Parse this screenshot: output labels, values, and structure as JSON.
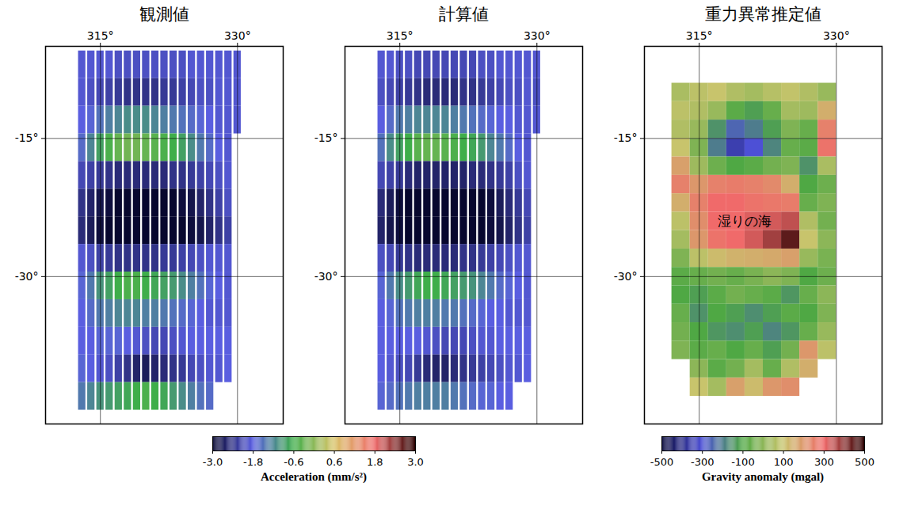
{
  "chart_data": [
    {
      "type": "strips",
      "title": "観測値",
      "x": [
        313,
        314,
        315,
        316,
        317,
        318,
        319,
        320,
        321,
        322,
        323,
        324,
        325,
        326,
        327,
        328,
        329,
        330
      ],
      "y": [
        -7,
        -10,
        -13,
        -16,
        -19,
        -22,
        -25,
        -28,
        -31,
        -34,
        -37,
        -40,
        -43
      ],
      "values": [
        [
          -1.9,
          -1.9,
          -1.9,
          -1.9,
          -2.0,
          -2.0,
          -2.0,
          -2.0,
          -2.0,
          -2.0,
          -2.0,
          -2.0,
          -1.9,
          -1.9,
          -1.9,
          -1.9,
          -1.9,
          -1.9
        ],
        [
          -1.9,
          -2.0,
          -2.1,
          -2.2,
          -2.3,
          -2.4,
          -2.4,
          -2.4,
          -2.4,
          -2.3,
          -2.3,
          -2.2,
          -2.1,
          -2.0,
          -2.0,
          -1.9,
          -1.9,
          -1.9
        ],
        [
          -1.8,
          -1.7,
          -1.5,
          -1.3,
          -1.2,
          -1.1,
          -1.1,
          -1.1,
          -1.2,
          -1.3,
          -1.4,
          -1.5,
          -1.6,
          -1.7,
          -1.8,
          -1.9,
          -1.9,
          -1.9
        ],
        [
          -1.6,
          -1.2,
          -0.8,
          -0.5,
          -0.3,
          -0.2,
          -0.2,
          -0.3,
          -0.4,
          -0.5,
          -0.6,
          -0.8,
          -1.1,
          -1.4,
          -1.6,
          -1.8,
          -1.9,
          null
        ],
        [
          -2.1,
          -2.2,
          -2.3,
          -2.4,
          -2.5,
          -2.5,
          -2.5,
          -2.5,
          -2.5,
          -2.5,
          -2.4,
          -2.4,
          -2.3,
          -2.2,
          -2.1,
          -2.0,
          -1.9,
          null
        ],
        [
          -2.4,
          -2.6,
          -2.8,
          -2.9,
          -3.0,
          -3.0,
          -3.0,
          -3.0,
          -3.0,
          -3.0,
          -3.0,
          -2.9,
          -2.8,
          -2.6,
          -2.4,
          -2.2,
          -2.0,
          null
        ],
        [
          -2.5,
          -2.7,
          -2.9,
          -3.0,
          -3.0,
          -3.0,
          -3.0,
          -3.0,
          -3.0,
          -3.0,
          -3.0,
          -3.0,
          -2.9,
          -2.8,
          -2.6,
          -2.4,
          -2.2,
          null
        ],
        [
          -1.9,
          -2.0,
          -2.2,
          -2.3,
          -2.4,
          -2.4,
          -2.4,
          -2.4,
          -2.4,
          -2.3,
          -2.3,
          -2.2,
          -2.1,
          -2.0,
          -1.9,
          -1.9,
          -1.9,
          null
        ],
        [
          -1.7,
          -1.4,
          -1.0,
          -0.8,
          -0.6,
          -0.5,
          -0.5,
          -0.6,
          -0.7,
          -0.8,
          -0.9,
          -1.1,
          -1.3,
          -1.5,
          -1.7,
          -1.8,
          -1.9,
          null
        ],
        [
          -1.8,
          -1.6,
          -1.4,
          -1.3,
          -1.2,
          -1.2,
          -1.2,
          -1.3,
          -1.3,
          -1.4,
          -1.5,
          -1.6,
          -1.7,
          -1.8,
          -1.9,
          -1.9,
          -1.9,
          null
        ],
        [
          -1.8,
          -1.8,
          -1.7,
          -1.7,
          -1.7,
          -1.8,
          -1.9,
          -2.0,
          -2.1,
          -2.1,
          -2.0,
          -1.9,
          -1.8,
          -1.8,
          -1.8,
          -1.8,
          -1.8,
          null
        ],
        [
          -1.7,
          -1.8,
          -1.9,
          -2.0,
          -2.2,
          -2.4,
          -2.6,
          -2.7,
          -2.6,
          -2.5,
          -2.4,
          -2.3,
          -2.1,
          -2.0,
          -1.9,
          -1.9,
          -1.8,
          null
        ],
        [
          -1.4,
          -1.2,
          -1.0,
          -0.9,
          -0.8,
          -0.7,
          -0.6,
          -0.5,
          -0.6,
          -0.7,
          -0.9,
          -1.1,
          -1.3,
          -1.5,
          -1.6,
          null,
          null,
          null
        ]
      ],
      "xlim": [
        309,
        335
      ],
      "ylim": [
        -46,
        -5
      ],
      "xticks": [
        {
          "value": 315,
          "label": "315°"
        },
        {
          "value": 330,
          "label": "330°"
        }
      ],
      "yticks": [
        {
          "value": -15,
          "label": "-15°"
        },
        {
          "value": -30,
          "label": "-30°"
        }
      ],
      "grid": true,
      "colorbar": {
        "label": "Acceleration (mm/s²)",
        "range": [
          -3,
          3
        ],
        "ticks": [
          {
            "value": -3,
            "label": "-3.0"
          },
          -1.8,
          -0.6,
          0.6,
          1.8,
          {
            "value": 3,
            "label": "3.0"
          }
        ],
        "colors": [
          "#07072e",
          "#5a5ee0",
          "#3fae4a",
          "#d9c46a",
          "#ef6d6d",
          "#2a0000"
        ]
      }
    },
    {
      "type": "strips",
      "title": "計算値",
      "x": [
        313,
        314,
        315,
        316,
        317,
        318,
        319,
        320,
        321,
        322,
        323,
        324,
        325,
        326,
        327,
        328,
        329,
        330
      ],
      "y": [
        -7,
        -10,
        -13,
        -16,
        -19,
        -22,
        -25,
        -28,
        -31,
        -34,
        -37,
        -40,
        -43
      ],
      "values": [
        [
          -1.9,
          -1.9,
          -2.0,
          -2.0,
          -2.1,
          -2.1,
          -2.1,
          -2.1,
          -2.1,
          -2.1,
          -2.1,
          -2.0,
          -2.0,
          -1.9,
          -1.9,
          -1.9,
          -1.9,
          -1.9
        ],
        [
          -2.0,
          -2.1,
          -2.2,
          -2.3,
          -2.4,
          -2.5,
          -2.5,
          -2.5,
          -2.5,
          -2.4,
          -2.4,
          -2.3,
          -2.2,
          -2.1,
          -2.0,
          -2.0,
          -1.9,
          -2.0
        ],
        [
          -1.8,
          -1.6,
          -1.4,
          -1.3,
          -1.2,
          -1.2,
          -1.2,
          -1.2,
          -1.3,
          -1.4,
          -1.5,
          -1.6,
          -1.7,
          -1.8,
          -1.8,
          -1.9,
          -1.9,
          -1.9
        ],
        [
          -1.5,
          -1.1,
          -0.8,
          -0.6,
          -0.4,
          -0.3,
          -0.3,
          -0.4,
          -0.5,
          -0.6,
          -0.7,
          -0.9,
          -1.2,
          -1.4,
          -1.6,
          -1.8,
          -1.9,
          null
        ],
        [
          -2.1,
          -2.2,
          -2.3,
          -2.5,
          -2.6,
          -2.6,
          -2.6,
          -2.6,
          -2.6,
          -2.6,
          -2.5,
          -2.5,
          -2.4,
          -2.3,
          -2.2,
          -2.0,
          -1.9,
          null
        ],
        [
          -2.5,
          -2.7,
          -2.9,
          -3.0,
          -3.0,
          -3.0,
          -3.0,
          -3.0,
          -3.0,
          -3.0,
          -3.0,
          -3.0,
          -2.9,
          -2.7,
          -2.5,
          -2.3,
          -2.1,
          null
        ],
        [
          -2.6,
          -2.8,
          -2.9,
          -3.0,
          -3.0,
          -3.0,
          -3.0,
          -3.0,
          -3.0,
          -3.0,
          -3.0,
          -3.0,
          -2.9,
          -2.8,
          -2.6,
          -2.4,
          -2.2,
          null
        ],
        [
          -2.0,
          -2.1,
          -2.3,
          -2.4,
          -2.5,
          -2.5,
          -2.5,
          -2.5,
          -2.5,
          -2.4,
          -2.4,
          -2.3,
          -2.2,
          -2.1,
          -2.0,
          -1.9,
          -1.9,
          null
        ],
        [
          -1.7,
          -1.4,
          -1.1,
          -0.9,
          -0.7,
          -0.6,
          -0.6,
          -0.7,
          -0.8,
          -0.9,
          -1.0,
          -1.2,
          -1.4,
          -1.6,
          -1.7,
          -1.8,
          -1.9,
          null
        ],
        [
          -1.8,
          -1.7,
          -1.5,
          -1.4,
          -1.3,
          -1.3,
          -1.3,
          -1.4,
          -1.4,
          -1.5,
          -1.6,
          -1.7,
          -1.8,
          -1.8,
          -1.9,
          -1.9,
          -1.9,
          null
        ],
        [
          -1.8,
          -1.8,
          -1.8,
          -1.8,
          -1.8,
          -1.9,
          -2.0,
          -2.1,
          -2.1,
          -2.1,
          -2.0,
          -1.9,
          -1.9,
          -1.8,
          -1.8,
          -1.8,
          -1.8,
          null
        ],
        [
          -1.8,
          -1.9,
          -2.0,
          -2.1,
          -2.3,
          -2.5,
          -2.6,
          -2.6,
          -2.5,
          -2.4,
          -2.3,
          -2.2,
          -2.1,
          -2.0,
          -1.9,
          -1.9,
          -1.8,
          null
        ],
        [
          -1.7,
          -1.6,
          -1.5,
          -1.4,
          -1.3,
          -1.3,
          -1.3,
          -1.3,
          -1.4,
          -1.5,
          -1.6,
          -1.7,
          -1.7,
          -1.8,
          -1.8,
          null,
          null,
          null
        ]
      ],
      "xlim": [
        309,
        335
      ],
      "ylim": [
        -46,
        -5
      ],
      "xticks": [
        {
          "value": 315,
          "label": "315°"
        },
        {
          "value": 330,
          "label": "330°"
        }
      ],
      "yticks": [
        {
          "value": -15,
          "label": "-15°"
        },
        {
          "value": -30,
          "label": "-30°"
        }
      ],
      "grid": true
    },
    {
      "type": "heatmap",
      "title": "重力異常推定値",
      "x": [
        313,
        315,
        317,
        319,
        321,
        323,
        325,
        327,
        329
      ],
      "y": [
        -10,
        -12,
        -14,
        -16,
        -18,
        -20,
        -22,
        -24,
        -26,
        -28,
        -30,
        -32,
        -34,
        -36,
        -38,
        -40,
        -42
      ],
      "values": [
        [
          50,
          80,
          100,
          60,
          40,
          70,
          90,
          60,
          20
        ],
        [
          80,
          60,
          20,
          -80,
          -120,
          -60,
          40,
          30,
          150
        ],
        [
          60,
          20,
          -150,
          -250,
          -200,
          -120,
          -20,
          -60,
          250
        ],
        [
          100,
          -20,
          -200,
          -350,
          -300,
          -180,
          -60,
          -80,
          280
        ],
        [
          180,
          30,
          -50,
          -100,
          -80,
          -40,
          -20,
          -150,
          50
        ],
        [
          250,
          200,
          250,
          260,
          250,
          230,
          150,
          -100,
          -50
        ],
        [
          150,
          250,
          300,
          300,
          280,
          270,
          260,
          -60,
          -20
        ],
        [
          80,
          220,
          300,
          300,
          320,
          330,
          350,
          60,
          -40
        ],
        [
          40,
          200,
          280,
          300,
          330,
          380,
          450,
          100,
          0
        ],
        [
          -20,
          80,
          120,
          140,
          150,
          160,
          180,
          20,
          -30
        ],
        [
          -80,
          -60,
          -40,
          -60,
          -30,
          0,
          -20,
          -100,
          -50
        ],
        [
          -100,
          -120,
          -80,
          -40,
          -60,
          -80,
          -140,
          -60,
          0
        ],
        [
          -60,
          -150,
          -100,
          -120,
          -160,
          -120,
          -80,
          -100,
          -20
        ],
        [
          -40,
          -100,
          -140,
          -160,
          -120,
          -180,
          -140,
          -60,
          20
        ],
        [
          -20,
          -80,
          -60,
          -100,
          -60,
          -120,
          -40,
          200,
          80
        ],
        [
          null,
          0,
          -80,
          -40,
          40,
          -60,
          60,
          150,
          null
        ],
        [
          null,
          100,
          40,
          180,
          120,
          200,
          220,
          null,
          null
        ]
      ],
      "xlim": [
        309,
        335
      ],
      "ylim": [
        -46,
        -5
      ],
      "xticks": [
        {
          "value": 315,
          "label": "315°"
        },
        {
          "value": 330,
          "label": "330°"
        }
      ],
      "yticks": [
        {
          "value": -15,
          "label": "-15°"
        },
        {
          "value": -30,
          "label": "-30°"
        }
      ],
      "grid": true,
      "annotations": [
        {
          "text": "湿りの海",
          "x": 320,
          "y": -24
        }
      ],
      "colorbar": {
        "label": "Gravity anomaly (mgal)",
        "range": [
          -500,
          500
        ],
        "ticks": [
          -500,
          -300,
          -100,
          100,
          300,
          500
        ],
        "colors": [
          "#0a0a3a",
          "#4d50d6",
          "#4fa844",
          "#c8c46c",
          "#f06a6a",
          "#2a0000"
        ]
      }
    }
  ]
}
